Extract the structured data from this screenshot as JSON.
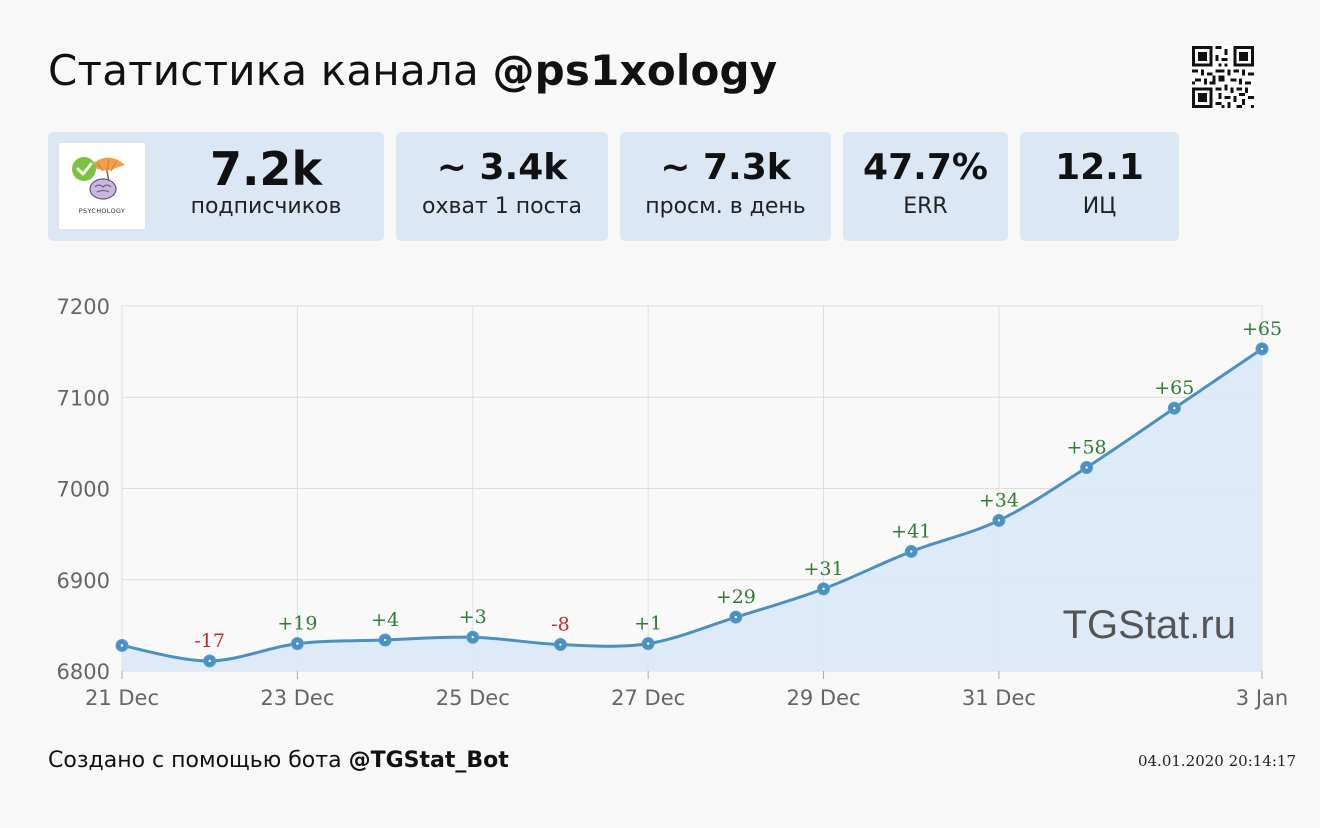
{
  "header": {
    "title_prefix": "Статистика канала",
    "channel_handle": "@ps1xology"
  },
  "avatar": {
    "caption": "PSYCHOLOGY"
  },
  "stats": [
    {
      "value": "7.2k",
      "label": "подписчиков"
    },
    {
      "value": "~ 3.4k",
      "label": "охват 1 поста"
    },
    {
      "value": "~ 7.3k",
      "label": "просм. в день"
    },
    {
      "value": "47.7%",
      "label": "ERR"
    },
    {
      "value": "12.1",
      "label": "ИЦ"
    }
  ],
  "chart_data": {
    "type": "area",
    "x": [
      "21 Dec",
      "22 Dec",
      "23 Dec",
      "24 Dec",
      "25 Dec",
      "26 Dec",
      "27 Dec",
      "28 Dec",
      "29 Dec",
      "30 Dec",
      "31 Dec",
      "1 Jan",
      "2 Jan",
      "3 Jan"
    ],
    "tick_labels": [
      "21 Dec",
      "23 Dec",
      "25 Dec",
      "27 Dec",
      "29 Dec",
      "31 Dec",
      "3 Jan"
    ],
    "values": [
      6828,
      6811,
      6830,
      6834,
      6837,
      6829,
      6830,
      6859,
      6890,
      6931,
      6965,
      7023,
      7088,
      7153
    ],
    "deltas": [
      null,
      "-17",
      "+19",
      "+4",
      "+3",
      "-8",
      "+1",
      "+29",
      "+31",
      "+41",
      "+34",
      "+58",
      "+65",
      "+65"
    ],
    "ylim": [
      6800,
      7200
    ],
    "yticks": [
      6800,
      6900,
      7000,
      7100,
      7200
    ],
    "grid": true,
    "title": "",
    "xlabel": "",
    "ylabel": "",
    "colors": {
      "line": "#4a90c0",
      "fill": "#dbe8f8",
      "positive": "#2e7d32",
      "negative": "#c62828"
    },
    "watermark": "TGStat.ru"
  },
  "footer": {
    "prefix": "Создано с помощью бота",
    "bot_handle": "@TGStat_Bot",
    "timestamp": "04.01.2020 20:14:17"
  }
}
